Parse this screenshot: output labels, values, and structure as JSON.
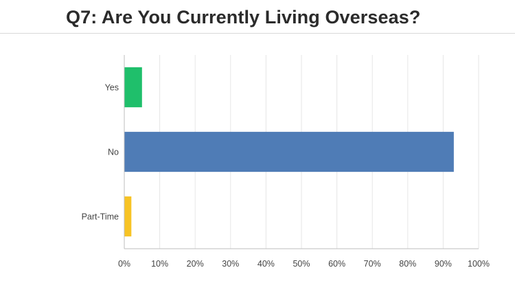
{
  "title": "Q7: Are You Currently Living Overseas?",
  "colors": {
    "yes": "#1fbf6b",
    "no": "#4f7cb6",
    "part_time": "#f7c325",
    "grid": "#e6e6e6",
    "axis": "#bdbdbd",
    "text": "#444444"
  },
  "chart_data": {
    "type": "bar",
    "orientation": "horizontal",
    "categories": [
      "Yes",
      "No",
      "Part-Time"
    ],
    "values": [
      5,
      93,
      2
    ],
    "unit": "%",
    "xlim": [
      0,
      100
    ],
    "xticks": [
      0,
      10,
      20,
      30,
      40,
      50,
      60,
      70,
      80,
      90,
      100
    ],
    "xtick_labels": [
      "0%",
      "10%",
      "20%",
      "30%",
      "40%",
      "50%",
      "60%",
      "70%",
      "80%",
      "90%",
      "100%"
    ],
    "bar_colors": [
      "#1fbf6b",
      "#4f7cb6",
      "#f7c325"
    ],
    "grid": true,
    "legend": "none"
  }
}
